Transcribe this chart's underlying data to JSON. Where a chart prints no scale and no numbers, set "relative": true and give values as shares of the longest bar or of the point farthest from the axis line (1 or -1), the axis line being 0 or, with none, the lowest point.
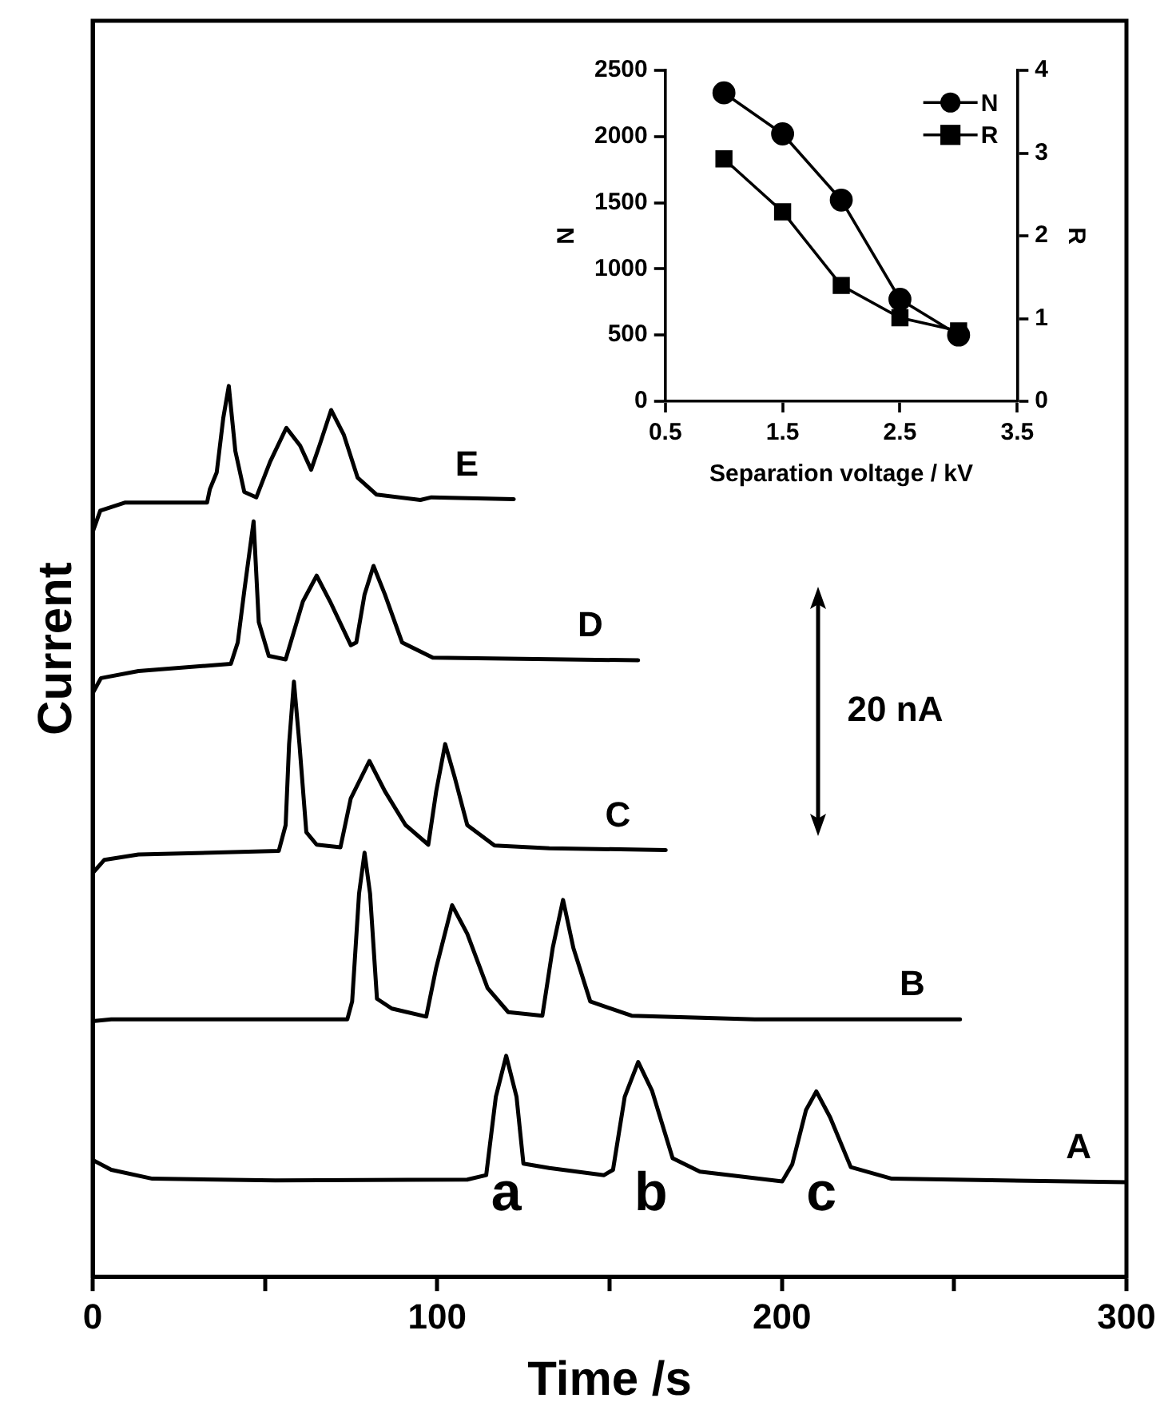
{
  "chart_data": [
    {
      "type": "line",
      "xlabel": "Time /s",
      "ylabel": "Current",
      "relative": true,
      "xlim": [
        0,
        300
      ],
      "xticks": [
        0,
        {
          "value": 50,
          "label": null
        },
        100,
        {
          "value": 150,
          "label": null
        },
        200,
        {
          "value": 250,
          "label": null
        },
        300
      ],
      "grid": false,
      "legend": false,
      "marker": "none",
      "line_style": "solid",
      "annotations": [
        "a",
        "b",
        "c",
        "20 nA"
      ],
      "series": [
        {
          "name": "A",
          "color": "#000000",
          "x": [
            0,
            5.4,
            17.3,
            53,
            108.7,
            114.2,
            117,
            120,
            123,
            125,
            132.5,
            148.4,
            151,
            154.4,
            158.3,
            162.3,
            168.3,
            176.2,
            200.1,
            203,
            207,
            210,
            214,
            220,
            231.9,
            300
          ],
          "values": [
            0.131,
            0.12,
            0.11,
            0.108,
            0.109,
            0.114,
            0.202,
            0.248,
            0.202,
            0.127,
            0.122,
            0.114,
            0.12,
            0.202,
            0.241,
            0.209,
            0.133,
            0.118,
            0.107,
            0.126,
            0.187,
            0.208,
            0.179,
            0.123,
            0.11,
            0.106
          ]
        },
        {
          "name": "B",
          "color": "#000000",
          "x": [
            0,
            5.4,
            73.9,
            75.3,
            77.3,
            78.9,
            80.5,
            82.5,
            86.8,
            96.8,
            99.7,
            104.3,
            108.7,
            114.6,
            120.6,
            130.5,
            133.5,
            136.5,
            139.5,
            144.4,
            156.4,
            192.1,
            251.7
          ],
          "values": [
            0.287,
            0.289,
            0.289,
            0.309,
            0.43,
            0.476,
            0.43,
            0.312,
            0.301,
            0.292,
            0.347,
            0.417,
            0.385,
            0.324,
            0.297,
            0.293,
            0.369,
            0.423,
            0.369,
            0.309,
            0.293,
            0.289,
            0.289
          ]
        },
        {
          "name": "C",
          "color": "#000000",
          "x": [
            0,
            3.4,
            13.3,
            54,
            56,
            57,
            58.4,
            60,
            62,
            65,
            71.9,
            74.9,
            80.3,
            84.8,
            90.8,
            97.4,
            99.7,
            102.3,
            105.1,
            108.7,
            116.6,
            132.5,
            166.3
          ],
          "values": [
            0.453,
            0.468,
            0.474,
            0.478,
            0.507,
            0.598,
            0.668,
            0.598,
            0.499,
            0.485,
            0.482,
            0.537,
            0.579,
            0.545,
            0.507,
            0.485,
            0.545,
            0.598,
            0.56,
            0.507,
            0.484,
            0.481,
            0.479
          ]
        },
        {
          "name": "D",
          "color": "#000000",
          "x": [
            0,
            2.4,
            13.3,
            40.1,
            42.1,
            44.1,
            46.7,
            48.2,
            51.1,
            56,
            61,
            65,
            68.9,
            74.9,
            76.5,
            78.9,
            81.5,
            84.8,
            89.8,
            98.7,
            158.3
          ],
          "values": [
            0.655,
            0.672,
            0.68,
            0.688,
            0.712,
            0.773,
            0.848,
            0.735,
            0.697,
            0.693,
            0.758,
            0.787,
            0.758,
            0.709,
            0.712,
            0.766,
            0.798,
            0.766,
            0.712,
            0.695,
            0.692
          ]
        },
        {
          "name": "E",
          "color": "#000000",
          "x": [
            0,
            2.2,
            9.3,
            33.2,
            34,
            36,
            37.9,
            39.5,
            41.4,
            44,
            47.5,
            51.5,
            56.2,
            60.2,
            63.4,
            65.8,
            69.2,
            72.9,
            76.9,
            82.4,
            95.1,
            98.3,
            122.2
          ],
          "values": [
            0.836,
            0.86,
            0.869,
            0.869,
            0.884,
            0.903,
            0.964,
            1,
            0.927,
            0.881,
            0.875,
            0.915,
            0.953,
            0.933,
            0.906,
            0.933,
            0.973,
            0.945,
            0.897,
            0.878,
            0.872,
            0.875,
            0.873
          ]
        }
      ]
    },
    {
      "type": "line",
      "xlabel": "Separation voltage / kV",
      "ylabel": "N",
      "y2label": "R",
      "xlim": [
        0.5,
        3.5
      ],
      "xticks": [
        0.5,
        1.5,
        2.5,
        3.5
      ],
      "ylim": [
        0,
        2500
      ],
      "yticks": [
        0,
        500,
        1000,
        1500,
        2000,
        2500
      ],
      "y2lim": [
        0,
        4
      ],
      "y2ticks": [
        0,
        1,
        2,
        3,
        4
      ],
      "grid": false,
      "legend": "top right",
      "line_style": "solid",
      "x": [
        1,
        1.5,
        2,
        2.5,
        3
      ],
      "series": [
        {
          "name": "N",
          "color": "#000000",
          "marker": "circle",
          "values": [
            2330,
            2020,
            1520,
            770,
            500
          ]
        },
        {
          "name": "R",
          "color": "#000000",
          "marker": "square",
          "axis": "y2",
          "values": [
            2.93,
            2.29,
            1.4,
            1.01,
            0.85
          ]
        }
      ]
    }
  ]
}
